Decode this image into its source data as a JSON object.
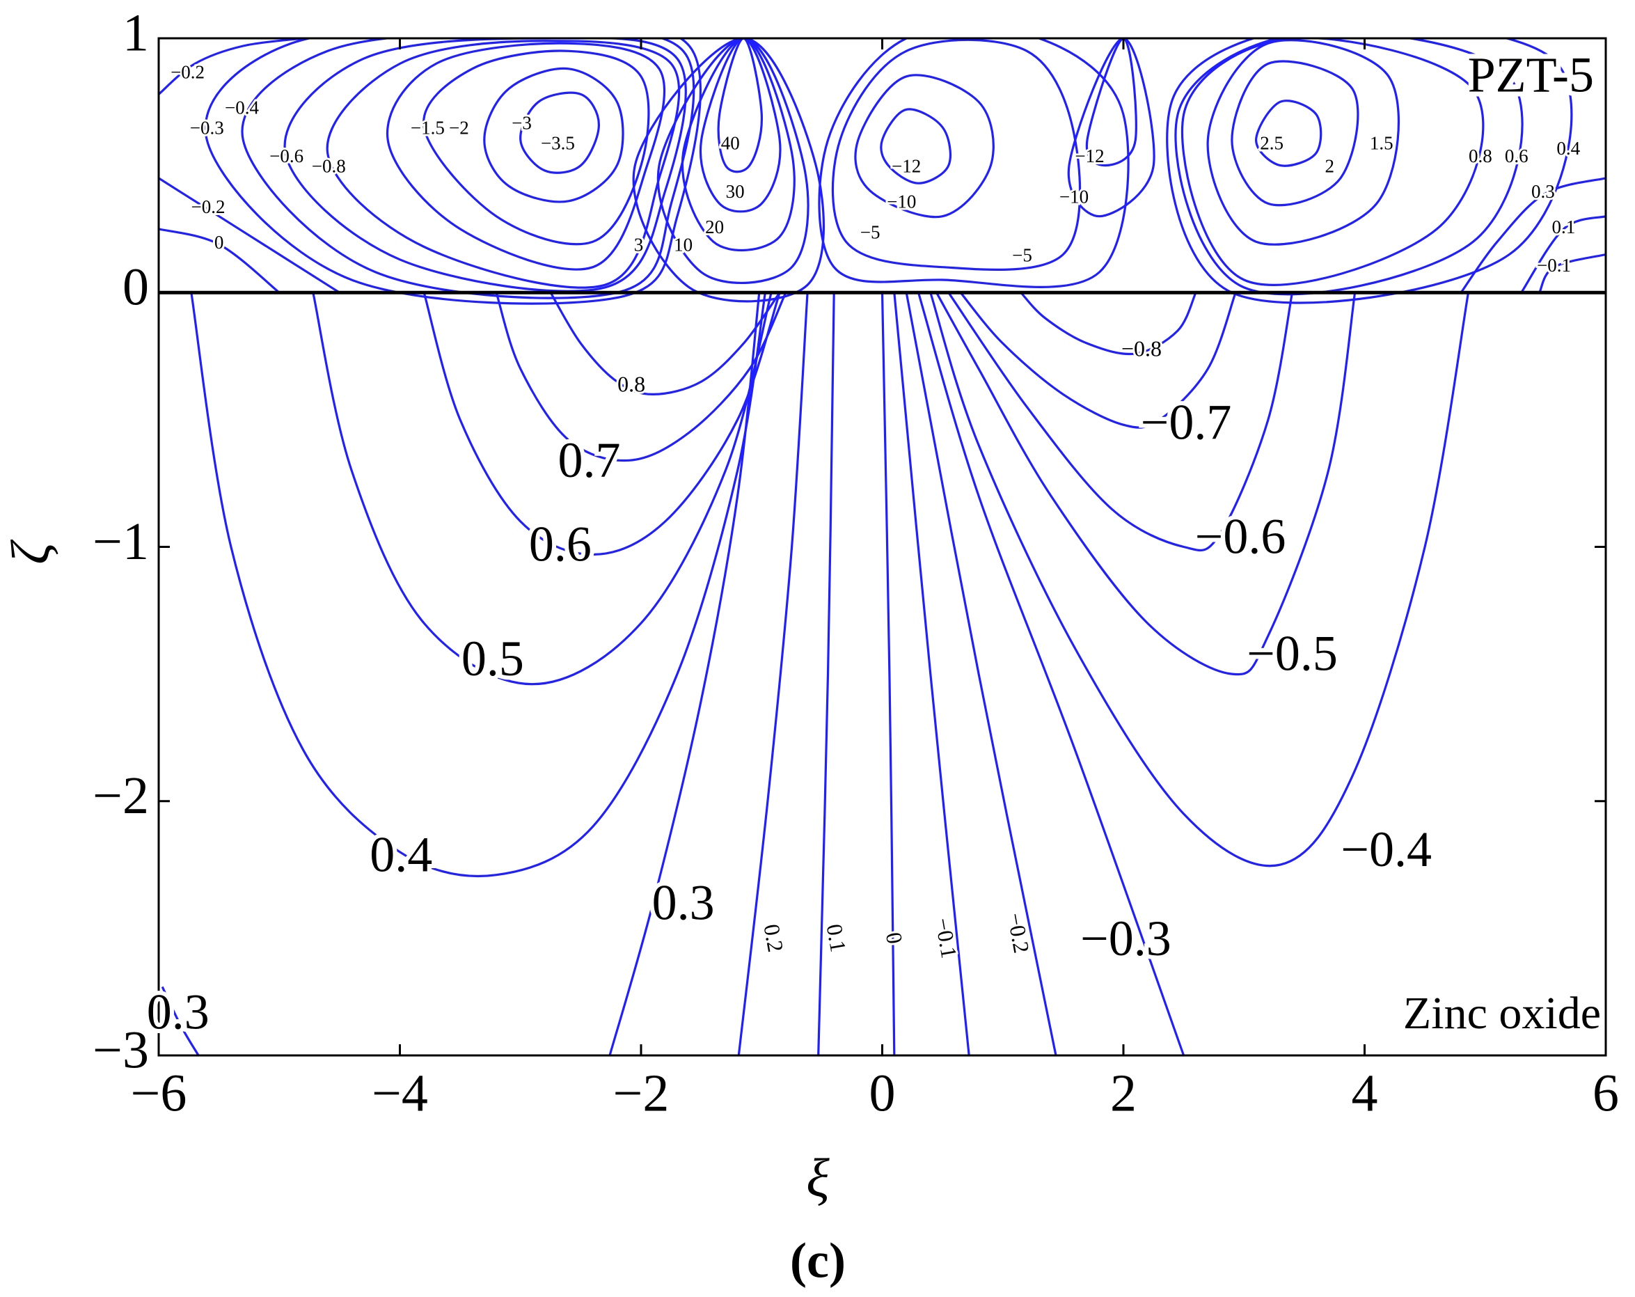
{
  "chart_data": {
    "type": "contour",
    "caption": "(c)",
    "xlabel": "ξ",
    "ylabel": "ζ",
    "xlim": [
      -6,
      6
    ],
    "ylim": [
      -3,
      1
    ],
    "xticks": [
      {
        "value": -6,
        "label": "−6"
      },
      {
        "value": -4,
        "label": "−4"
      },
      {
        "value": -2,
        "label": "−2"
      },
      0,
      2,
      4,
      6
    ],
    "yticks": [
      {
        "value": -3,
        "label": "−3"
      },
      {
        "value": -2,
        "label": "−2"
      },
      {
        "value": -1,
        "label": "−1"
      },
      0,
      1
    ],
    "color": "#1f1fff",
    "annotations": [
      "PZT-5",
      "Zinc oxide"
    ],
    "contours": [
      {
        "level": 0.8,
        "label": "0.8",
        "label_x": -2.08,
        "label_y": -0.37,
        "closed": false,
        "x": [
          -2.75,
          -2.5,
          -2.2,
          -1.9,
          -1.5,
          -1.15,
          -0.85
        ],
        "y": [
          0,
          -0.2,
          -0.35,
          -0.4,
          -0.35,
          -0.2,
          0
        ]
      },
      {
        "level": 0.7,
        "label": "0.7",
        "label_x": -2.43,
        "label_y": -0.68,
        "closed": false,
        "x": [
          -3.2,
          -3.0,
          -2.6,
          -2.1,
          -1.6,
          -1.1,
          -0.8
        ],
        "y": [
          0,
          -0.3,
          -0.58,
          -0.66,
          -0.55,
          -0.3,
          0
        ]
      },
      {
        "level": 0.6,
        "label": "0.6",
        "label_x": -2.67,
        "label_y": -1.01,
        "closed": false,
        "x": [
          -3.8,
          -3.5,
          -3.0,
          -2.4,
          -1.8,
          -1.2,
          -0.85
        ],
        "y": [
          0,
          -0.5,
          -0.9,
          -1.03,
          -0.9,
          -0.5,
          0
        ]
      },
      {
        "level": 0.5,
        "label": "0.5",
        "label_x": -3.23,
        "label_y": -1.46,
        "closed": false,
        "x": [
          -4.72,
          -4.4,
          -3.8,
          -2.9,
          -2.0,
          -1.3,
          -0.92
        ],
        "y": [
          0,
          -0.7,
          -1.3,
          -1.54,
          -1.3,
          -0.7,
          0
        ]
      },
      {
        "level": 0.4,
        "label": "0.4",
        "label_x": -3.99,
        "label_y": -2.23,
        "closed": false,
        "x": [
          -5.73,
          -5.4,
          -4.8,
          -4.0,
          -3.2,
          -2.4,
          -1.7,
          -1.2,
          -0.97
        ],
        "y": [
          0,
          -1.0,
          -1.8,
          -2.2,
          -2.29,
          -2.1,
          -1.5,
          -0.7,
          0
        ]
      },
      {
        "level": 0.3,
        "label": "0.3",
        "label_x": -1.65,
        "label_y": -2.42,
        "closed": false,
        "x": [
          -2.26,
          -1.9,
          -1.5,
          -1.2,
          -1.02
        ],
        "y": [
          -3,
          -2.4,
          -1.6,
          -0.8,
          0
        ]
      },
      {
        "level": 0.3,
        "label": "0.3",
        "label_x": -5.84,
        "label_y": -2.85,
        "closed": false,
        "x": [
          -5.97,
          -5.82,
          -5.67
        ],
        "y": [
          -2.73,
          -2.88,
          -3.0
        ]
      },
      {
        "level": 0.2,
        "label": "0.2",
        "label_x": -0.92,
        "label_y": -2.54,
        "closed": false,
        "x": [
          -1.19,
          -0.95,
          -0.75,
          -0.62
        ],
        "y": [
          -3,
          -2,
          -1,
          0
        ]
      },
      {
        "level": 0.1,
        "label": "0.1",
        "label_x": -0.4,
        "label_y": -2.54,
        "closed": false,
        "x": [
          -0.53,
          -0.45,
          -0.4
        ],
        "y": [
          -3,
          -1.5,
          0
        ]
      },
      {
        "level": 0,
        "label": "0",
        "label_x": 0.08,
        "label_y": -2.54,
        "closed": false,
        "x": [
          0.1,
          0.06,
          0.0
        ],
        "y": [
          -3,
          -1.5,
          0
        ]
      },
      {
        "level": -0.1,
        "label": "−0.1",
        "label_x": 0.51,
        "label_y": -2.54,
        "closed": false,
        "x": [
          0.72,
          0.4,
          0.1
        ],
        "y": [
          -3,
          -1.5,
          0
        ]
      },
      {
        "level": -0.2,
        "label": "−0.2",
        "label_x": 1.11,
        "label_y": -2.52,
        "closed": false,
        "x": [
          1.44,
          0.8,
          0.2
        ],
        "y": [
          -3,
          -1.5,
          0
        ]
      },
      {
        "level": -0.3,
        "label": "−0.3",
        "label_x": 2.02,
        "label_y": -2.56,
        "closed": false,
        "x": [
          2.5,
          1.6,
          0.8,
          0.3
        ],
        "y": [
          -3,
          -1.8,
          -0.8,
          0
        ]
      },
      {
        "level": -0.4,
        "label": "−0.4",
        "label_x": 4.18,
        "label_y": -2.21,
        "closed": false,
        "x": [
          4.86,
          4.5,
          3.9,
          3.3,
          2.5,
          1.6,
          0.8,
          0.4
        ],
        "y": [
          0,
          -1.0,
          -1.9,
          -2.25,
          -2.05,
          -1.4,
          -0.6,
          0
        ]
      },
      {
        "level": -0.5,
        "label": "−0.5",
        "label_x": 3.4,
        "label_y": -1.44,
        "closed": false,
        "x": [
          3.92,
          3.7,
          3.2,
          2.9,
          2.2,
          1.4,
          0.8,
          0.45
        ],
        "y": [
          0,
          -0.7,
          -1.35,
          -1.5,
          -1.3,
          -0.8,
          -0.3,
          0
        ]
      },
      {
        "level": -0.6,
        "label": "−0.6",
        "label_x": 2.97,
        "label_y": -0.98,
        "closed": false,
        "x": [
          3.4,
          3.2,
          2.8,
          2.5,
          1.9,
          1.2,
          0.55
        ],
        "y": [
          0,
          -0.5,
          -0.95,
          -1.0,
          -0.85,
          -0.45,
          0
        ]
      },
      {
        "level": -0.7,
        "label": "−0.7",
        "label_x": 2.52,
        "label_y": -0.53,
        "closed": false,
        "x": [
          2.93,
          2.7,
          2.3,
          2.0,
          1.5,
          1.0,
          0.65
        ],
        "y": [
          0,
          -0.3,
          -0.5,
          -0.52,
          -0.4,
          -0.2,
          0
        ]
      },
      {
        "level": -0.8,
        "label": "−0.8",
        "label_x": 2.15,
        "label_y": -0.23,
        "closed": false,
        "x": [
          2.6,
          2.45,
          2.1,
          1.7,
          1.35,
          1.15
        ],
        "y": [
          0,
          -0.15,
          -0.24,
          -0.2,
          -0.1,
          0
        ]
      },
      {
        "level": -3.5,
        "label": "−3.5",
        "label_x": -2.69,
        "label_y": 0.58,
        "closed": true,
        "x": [
          -3.0,
          -2.85,
          -2.5,
          -2.35,
          -2.5,
          -2.8
        ],
        "y": [
          0.6,
          0.75,
          0.78,
          0.66,
          0.5,
          0.48
        ]
      },
      {
        "level": -3,
        "label": "−3",
        "label_x": -2.99,
        "label_y": 0.66,
        "closed": true,
        "x": [
          -3.3,
          -3.1,
          -2.6,
          -2.2,
          -2.2,
          -2.6,
          -3.1
        ],
        "y": [
          0.6,
          0.8,
          0.88,
          0.75,
          0.5,
          0.36,
          0.42
        ]
      },
      {
        "level": -2,
        "label": "−2",
        "label_x": -3.51,
        "label_y": 0.64,
        "closed": true,
        "x": [
          -3.8,
          -3.4,
          -2.6,
          -2.0,
          -2.0,
          -2.4,
          -3.2
        ],
        "y": [
          0.65,
          0.88,
          0.95,
          0.85,
          0.5,
          0.2,
          0.3
        ]
      },
      {
        "level": -1.5,
        "label": "−1.5",
        "label_x": -3.77,
        "label_y": 0.64,
        "closed": true,
        "x": [
          -4.1,
          -3.7,
          -2.6,
          -1.85,
          -1.95,
          -2.4,
          -3.5
        ],
        "y": [
          0.6,
          0.9,
          0.98,
          0.88,
          0.5,
          0.1,
          0.25
        ]
      },
      {
        "level": -0.8,
        "label": "−0.8",
        "label_x": -4.59,
        "label_y": 0.49,
        "closed": true,
        "x": [
          -4.6,
          -4.0,
          -2.8,
          -1.75,
          -1.85,
          -2.3,
          -3.8
        ],
        "y": [
          0.55,
          0.9,
          0.99,
          0.9,
          0.45,
          0.03,
          0.18
        ]
      },
      {
        "level": -0.6,
        "label": "−0.6",
        "label_x": -4.94,
        "label_y": 0.53,
        "closed": true,
        "x": [
          -4.95,
          -4.3,
          -2.8,
          -1.7,
          -1.8,
          -2.3,
          -4.0
        ],
        "y": [
          0.55,
          0.92,
          1.0,
          0.92,
          0.4,
          0.02,
          0.13
        ]
      },
      {
        "level": -0.4,
        "label": "−0.4",
        "label_x": -5.31,
        "label_y": 0.72,
        "closed": true,
        "x": [
          -5.3,
          -4.6,
          -3.0,
          -1.65,
          -1.75,
          -2.2,
          -4.2
        ],
        "y": [
          0.6,
          0.95,
          1.02,
          0.95,
          0.35,
          0.0,
          0.08
        ]
      },
      {
        "level": -0.3,
        "label": "−0.3",
        "label_x": -5.6,
        "label_y": 0.64,
        "closed": true,
        "x": [
          -5.6,
          -4.9,
          -3.0,
          -1.6,
          -1.7,
          -2.2,
          -4.4
        ],
        "y": [
          0.6,
          0.98,
          1.04,
          0.97,
          0.3,
          -0.02,
          0.05
        ]
      },
      {
        "level": -0.2,
        "label": "−0.2",
        "label_x": -5.76,
        "label_y": 0.86,
        "closed": false,
        "x": [
          -6.0,
          -5.7,
          -5.3,
          -4.8
        ],
        "y": [
          0.78,
          0.9,
          0.97,
          1.0
        ]
      },
      {
        "level": -0.2,
        "label": "−0.2",
        "label_x": -5.59,
        "label_y": 0.33,
        "closed": false,
        "x": [
          -6.0,
          -5.6,
          -5.0,
          -4.5
        ],
        "y": [
          0.45,
          0.33,
          0.15,
          0
        ]
      },
      {
        "level": 0,
        "label": "0",
        "label_x": -5.5,
        "label_y": 0.19,
        "closed": false,
        "x": [
          -6.0,
          -5.5,
          -5.0
        ],
        "y": [
          0.25,
          0.19,
          0
        ]
      },
      {
        "level": 40,
        "label": "40",
        "label_x": -1.26,
        "label_y": 0.58,
        "closed": true,
        "x": [
          -1.15,
          -1.0,
          -1.1,
          -1.3,
          -1.35
        ],
        "y": [
          1.0,
          0.7,
          0.5,
          0.5,
          0.7
        ]
      },
      {
        "level": 30,
        "label": "30",
        "label_x": -1.22,
        "label_y": 0.39,
        "closed": true,
        "x": [
          -1.15,
          -0.85,
          -1.0,
          -1.35,
          -1.5
        ],
        "y": [
          1.0,
          0.6,
          0.35,
          0.35,
          0.6
        ]
      },
      {
        "level": 20,
        "label": "20",
        "label_x": -1.39,
        "label_y": 0.25,
        "closed": true,
        "x": [
          -1.15,
          -0.75,
          -0.85,
          -1.4,
          -1.65
        ],
        "y": [
          1.0,
          0.55,
          0.22,
          0.2,
          0.55
        ]
      },
      {
        "level": 10,
        "label": "10",
        "label_x": -1.65,
        "label_y": 0.18,
        "closed": true,
        "x": [
          -1.15,
          -0.65,
          -0.75,
          -1.5,
          -1.85
        ],
        "y": [
          1.0,
          0.5,
          0.1,
          0.08,
          0.5
        ]
      },
      {
        "level": 3,
        "label": "3",
        "label_x": -2.02,
        "label_y": 0.18,
        "closed": true,
        "x": [
          -1.15,
          -0.55,
          -0.62,
          -1.6,
          -2.05
        ],
        "y": [
          1.0,
          0.5,
          0.03,
          0.02,
          0.5
        ]
      },
      {
        "level": -12,
        "label": "−12",
        "label_x": 0.2,
        "label_y": 0.49,
        "closed": true,
        "x": [
          0.0,
          0.2,
          0.5,
          0.55,
          0.3,
          0.05
        ],
        "y": [
          0.6,
          0.72,
          0.65,
          0.5,
          0.43,
          0.5
        ]
      },
      {
        "level": -10,
        "label": "−10",
        "label_x": 0.16,
        "label_y": 0.35,
        "closed": true,
        "x": [
          -0.2,
          0.2,
          0.8,
          0.9,
          0.5,
          -0.1
        ],
        "y": [
          0.6,
          0.85,
          0.75,
          0.5,
          0.3,
          0.4
        ]
      },
      {
        "level": -5,
        "label": "−5",
        "label_x": -0.1,
        "label_y": 0.23,
        "closed": true,
        "x": [
          -0.35,
          0.2,
          1.2,
          1.6,
          1.5,
          0.5,
          -0.3
        ],
        "y": [
          0.6,
          0.95,
          0.95,
          0.6,
          0.15,
          0.1,
          0.2
        ]
      },
      {
        "level": -5,
        "label": "−5",
        "label_x": 1.16,
        "label_y": 0.14,
        "closed": true,
        "x": [
          -0.45,
          0.2,
          1.3,
          2.0,
          1.8,
          0.5,
          -0.4
        ],
        "y": [
          0.6,
          1.0,
          1.0,
          0.7,
          0.08,
          0.05,
          0.1
        ]
      },
      {
        "level": -12,
        "label": "−12",
        "label_x": 1.72,
        "label_y": 0.53,
        "closed": true,
        "x": [
          2.0,
          2.1,
          1.85,
          1.7
        ],
        "y": [
          1.0,
          0.6,
          0.5,
          0.6
        ]
      },
      {
        "level": -10,
        "label": "−10",
        "label_x": 1.59,
        "label_y": 0.37,
        "closed": true,
        "x": [
          2.0,
          2.25,
          1.8,
          1.55
        ],
        "y": [
          1.0,
          0.5,
          0.3,
          0.5
        ]
      },
      {
        "level": 2.5,
        "label": "2.5",
        "label_x": 3.23,
        "label_y": 0.58,
        "closed": true,
        "x": [
          3.1,
          3.3,
          3.6,
          3.6,
          3.3
        ],
        "y": [
          0.6,
          0.75,
          0.7,
          0.55,
          0.5
        ]
      },
      {
        "level": 2,
        "label": "2",
        "label_x": 3.71,
        "label_y": 0.49,
        "closed": true,
        "x": [
          2.9,
          3.2,
          3.9,
          3.8,
          3.2
        ],
        "y": [
          0.6,
          0.9,
          0.8,
          0.45,
          0.35
        ]
      },
      {
        "level": 1.5,
        "label": "1.5",
        "label_x": 4.14,
        "label_y": 0.58,
        "closed": true,
        "x": [
          2.7,
          3.2,
          4.2,
          4.1,
          3.1
        ],
        "y": [
          0.6,
          0.98,
          0.85,
          0.35,
          0.2
        ]
      },
      {
        "level": 0.8,
        "label": "0.8",
        "label_x": 4.96,
        "label_y": 0.53,
        "closed": true,
        "x": [
          2.5,
          3.4,
          4.9,
          4.6,
          3.0
        ],
        "y": [
          0.7,
          1.0,
          0.8,
          0.25,
          0.05
        ]
      },
      {
        "level": 0.6,
        "label": "0.6",
        "label_x": 5.26,
        "label_y": 0.53,
        "closed": true,
        "x": [
          2.45,
          3.5,
          5.2,
          4.9,
          3.0
        ],
        "y": [
          0.7,
          1.02,
          0.85,
          0.2,
          0.02
        ]
      },
      {
        "level": 0.4,
        "label": "0.4",
        "label_x": 5.69,
        "label_y": 0.56,
        "closed": true,
        "x": [
          2.4,
          3.6,
          5.6,
          5.2,
          2.9
        ],
        "y": [
          0.75,
          1.05,
          0.9,
          0.15,
          0.0
        ]
      },
      {
        "level": 0.3,
        "label": "0.3",
        "label_x": 5.48,
        "label_y": 0.39,
        "closed": false,
        "x": [
          6.0,
          5.5,
          5.1,
          4.8
        ],
        "y": [
          0.45,
          0.39,
          0.2,
          0
        ]
      },
      {
        "level": 0.1,
        "label": "0.1",
        "label_x": 5.65,
        "label_y": 0.25,
        "closed": false,
        "x": [
          6.0,
          5.65,
          5.3
        ],
        "y": [
          0.3,
          0.25,
          0
        ]
      },
      {
        "level": -0.1,
        "label": "−0.1",
        "label_x": 5.57,
        "label_y": 0.1,
        "closed": false,
        "x": [
          6.0,
          5.57,
          5.45
        ],
        "y": [
          0.15,
          0.1,
          0
        ]
      }
    ]
  }
}
